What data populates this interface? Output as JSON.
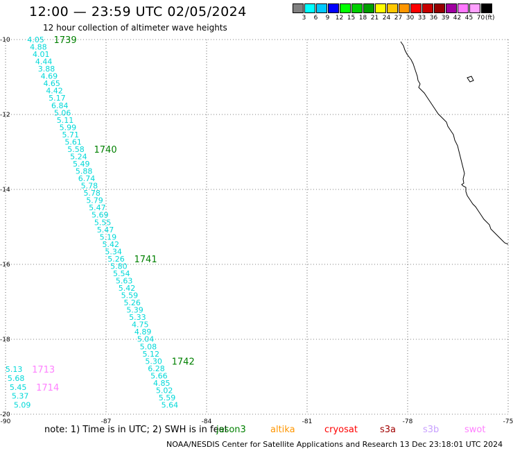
{
  "header": {
    "title": "12:00 — 23:59 UTC 02/05/2024",
    "subtitle": "12 hour collection of altimeter wave heights"
  },
  "colorbar": {
    "colors": [
      "#808080",
      "#00ffff",
      "#00c8ff",
      "#0000ff",
      "#00ff00",
      "#00d000",
      "#00a000",
      "#ffff00",
      "#ffc800",
      "#ff9600",
      "#ff0000",
      "#c80000",
      "#960000",
      "#a000a0",
      "#ff78ff",
      "#ffa0ff",
      "#000000"
    ],
    "labels": [
      "3",
      "6",
      "9",
      "12",
      "15",
      "18",
      "21",
      "24",
      "27",
      "30",
      "33",
      "36",
      "39",
      "42",
      "45",
      "70"
    ],
    "unit": "(ft)"
  },
  "map": {
    "lon_range": [
      -90,
      -75
    ],
    "lat_range": [
      -20,
      -10
    ],
    "x_ticks": [
      "-90",
      "-87",
      "-84",
      "-81",
      "-78",
      "-75"
    ],
    "y_ticks": [
      "-10",
      "-12",
      "-14",
      "-16",
      "-18",
      "-20"
    ]
  },
  "tracks": [
    {
      "satellite": "jason3",
      "value_color": "#00d8d8",
      "label_color": "#008000",
      "pass_labels": [
        {
          "text": "1739",
          "index": 0
        },
        {
          "text": "1740",
          "index": 15
        },
        {
          "text": "1741",
          "index": 30
        },
        {
          "text": "1742",
          "index": 44
        }
      ],
      "start": {
        "lon": -89.1,
        "lat": -10.0
      },
      "end": {
        "lon": -85.1,
        "lat": -19.75
      },
      "values": [
        "4.05",
        "4.88",
        "4.01",
        "4.44",
        "3.88",
        "4.69",
        "4.65",
        "4.42",
        "5.17",
        "6.84",
        "5.06",
        "5.11",
        "5.99",
        "5.71",
        "5.61",
        "5.58",
        "5.24",
        "5.49",
        "5.88",
        "6.74",
        "5.78",
        "5.78",
        "5.79",
        "5.47",
        "5.69",
        "5.55",
        "5.47",
        "5.19",
        "5.42",
        "5.34",
        "5.26",
        "5.80",
        "5.54",
        "5.63",
        "5.42",
        "5.59",
        "5.26",
        "5.39",
        "5.33",
        "4.75",
        "4.89",
        "5.04",
        "5.08",
        "5.12",
        "5.30",
        "6.28",
        "5.66",
        "4.85",
        "5.02",
        "5.59",
        "5.64"
      ]
    },
    {
      "satellite": "swot",
      "value_color": "#00d8d8",
      "label_color": "#ff80ff",
      "pass_labels": [
        {
          "text": "1713",
          "index": 0
        },
        {
          "text": "1714",
          "index": 2
        }
      ],
      "start": {
        "lon": -89.75,
        "lat": -18.8
      },
      "end": {
        "lon": -89.5,
        "lat": -19.75
      },
      "values": [
        "5.13",
        "5.68",
        "5.45",
        "5.37",
        "5.09"
      ]
    }
  ],
  "footer": {
    "note": "note:  1) Time is in UTC;  2) SWH is in feet",
    "satellites": [
      {
        "name": "jason3",
        "color": "#008000"
      },
      {
        "name": "altika",
        "color": "#ff9600"
      },
      {
        "name": "cryosat",
        "color": "#ff0000"
      },
      {
        "name": "s3a",
        "color": "#a00000"
      },
      {
        "name": "s3b",
        "color": "#c8a0ff"
      },
      {
        "name": "swot",
        "color": "#ff80ff"
      }
    ],
    "credit": "NOAA/NESDIS Center for Satellite Applications and Research     13 Dec 23:18:01 UTC 2024"
  }
}
